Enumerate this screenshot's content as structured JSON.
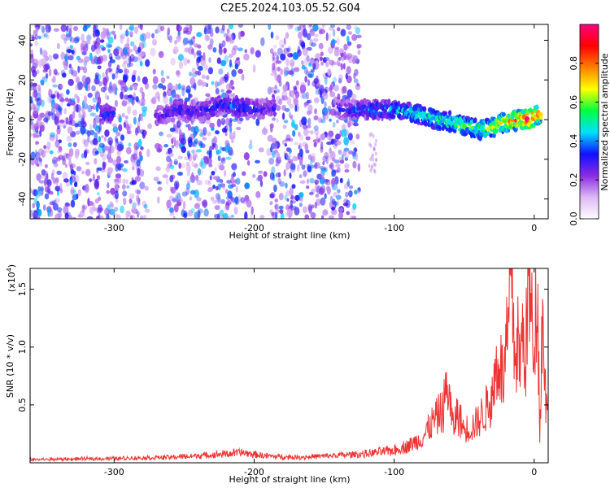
{
  "title": "C2E5.2024.103.05.52.G04",
  "chart_data": [
    {
      "type": "heatmap",
      "xlabel": "Height of straight line (km)",
      "ylabel": "Frequency (Hz)",
      "xlim": [
        -360,
        10
      ],
      "ylim": [
        -50,
        48
      ],
      "xticks": [
        -300,
        -200,
        -100,
        0
      ],
      "xtick_labels": [
        "-300",
        "-200",
        "-100",
        "0"
      ],
      "yticks": [
        -40,
        -20,
        0,
        20,
        40
      ],
      "ytick_labels": [
        "-40",
        "-20",
        "0",
        "20",
        "40"
      ],
      "colorbar": {
        "label": "Normalized spectral amplitude",
        "range": [
          0,
          1
        ],
        "ticks": [
          0.0,
          0.2,
          0.4,
          0.6,
          0.8
        ],
        "tick_labels": [
          "0.0",
          "0.2",
          "0.4",
          "0.6",
          "0.8"
        ],
        "colors": [
          "#ffffff",
          "#dcb8f5",
          "#8a2be2",
          "#1010ff",
          "#00e0ff",
          "#00ff40",
          "#ffff00",
          "#ff8000",
          "#ff0000",
          "#ff0080"
        ]
      },
      "noise_x_range": [
        -360,
        -125
      ],
      "signal_trace": [
        {
          "x": -310,
          "y": 3,
          "amp": 0.35
        },
        {
          "x": -265,
          "y": 2,
          "amp": 0.3
        },
        {
          "x": -255,
          "y": 5,
          "amp": 0.35
        },
        {
          "x": -240,
          "y": 4,
          "amp": 0.32
        },
        {
          "x": -220,
          "y": 8,
          "amp": 0.38
        },
        {
          "x": -210,
          "y": 6,
          "amp": 0.4
        },
        {
          "x": -200,
          "y": 5,
          "amp": 0.35
        },
        {
          "x": -190,
          "y": 6,
          "amp": 0.3
        },
        {
          "x": -135,
          "y": 5,
          "amp": 0.35
        },
        {
          "x": -120,
          "y": 5,
          "amp": 0.4
        },
        {
          "x": -100,
          "y": 5,
          "amp": 0.45
        },
        {
          "x": -90,
          "y": 4,
          "amp": 0.5
        },
        {
          "x": -80,
          "y": 2,
          "amp": 0.55
        },
        {
          "x": -70,
          "y": 0,
          "amp": 0.58
        },
        {
          "x": -60,
          "y": -1,
          "amp": 0.6
        },
        {
          "x": -50,
          "y": -3,
          "amp": 0.65
        },
        {
          "x": -40,
          "y": -5,
          "amp": 0.6
        },
        {
          "x": -30,
          "y": -4,
          "amp": 0.7
        },
        {
          "x": -20,
          "y": -1,
          "amp": 0.8
        },
        {
          "x": -10,
          "y": 0,
          "amp": 0.85
        },
        {
          "x": -4,
          "y": 0,
          "amp": 1.0
        },
        {
          "x": 5,
          "y": 3,
          "amp": 0.75
        }
      ]
    },
    {
      "type": "line",
      "xlabel": "Height of straight line (km)",
      "ylabel": "SNR (10 * v/v)",
      "y_multiplier": "(x10",
      "y_multiplier_exp": "4",
      "y_multiplier_close": ")",
      "xlim": [
        -360,
        10
      ],
      "ylim": [
        0,
        1.68
      ],
      "xticks": [
        -300,
        -200,
        -100,
        0
      ],
      "xtick_labels": [
        "-300",
        "-200",
        "-100",
        "0"
      ],
      "yticks": [
        0.5,
        1.0,
        1.5
      ],
      "ytick_labels": [
        "0.5",
        "1.0",
        "1.5"
      ],
      "line_color": "#ee3333",
      "series": [
        {
          "x": [
            -360,
            -300,
            -260,
            -230,
            -210,
            -190,
            -170,
            -150,
            -120,
            -100,
            -90,
            -80,
            -75,
            -70,
            -65,
            -62,
            -58,
            -55,
            -50,
            -45,
            -40,
            -35,
            -30,
            -27,
            -25,
            -22,
            -20,
            -18,
            -16,
            -14,
            -12,
            -10,
            -8,
            -6,
            -4,
            -2,
            0,
            2,
            4,
            6,
            8,
            10
          ],
          "y": [
            0.02,
            0.03,
            0.04,
            0.06,
            0.08,
            0.05,
            0.04,
            0.05,
            0.07,
            0.1,
            0.14,
            0.2,
            0.3,
            0.38,
            0.45,
            0.68,
            0.3,
            0.42,
            0.28,
            0.3,
            0.35,
            0.45,
            0.55,
            0.82,
            0.9,
            0.7,
            0.95,
            1.2,
            1.68,
            0.9,
            1.05,
            0.85,
            1.1,
            0.95,
            1.6,
            1.2,
            1.0,
            1.65,
            0.3,
            1.3,
            0.6,
            0.5
          ]
        }
      ]
    }
  ]
}
